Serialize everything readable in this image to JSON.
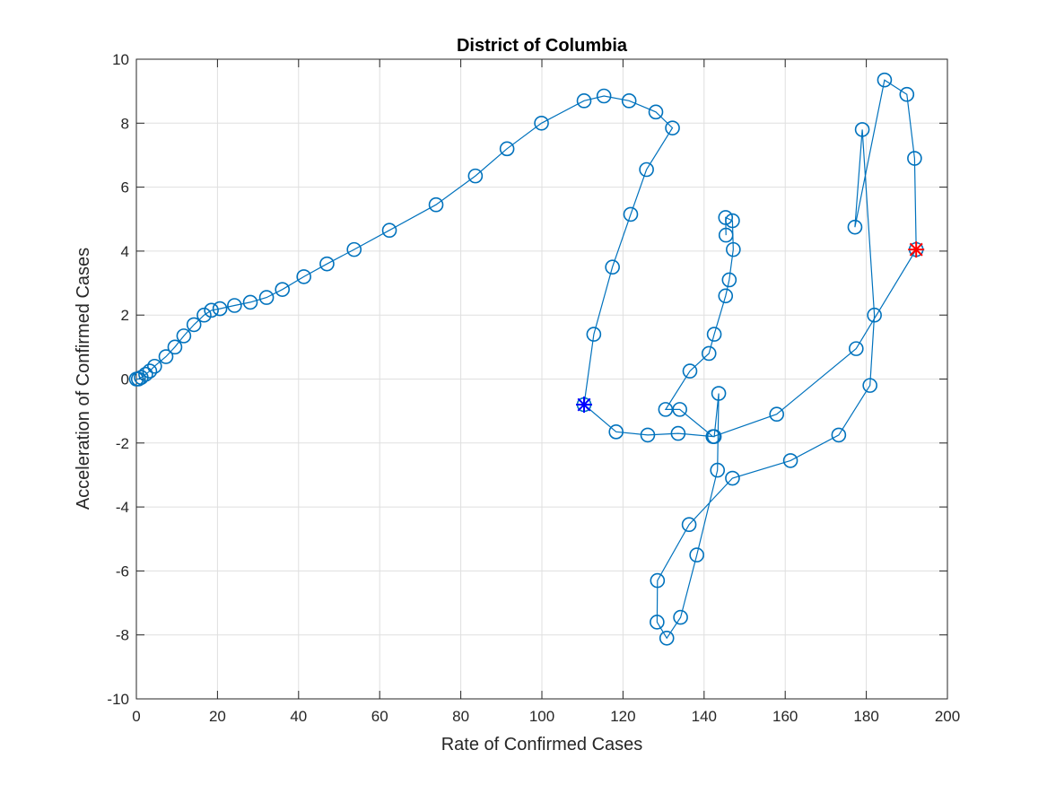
{
  "chart_data": {
    "type": "line",
    "title": "District of Columbia",
    "xlabel": "Rate of Confirmed Cases",
    "ylabel": "Acceleration of Confirmed Cases",
    "xlim": [
      0,
      200
    ],
    "ylim": [
      -10,
      10
    ],
    "xticks": [
      0,
      20,
      40,
      60,
      80,
      100,
      120,
      140,
      160,
      180,
      200
    ],
    "yticks": [
      -10,
      -8,
      -6,
      -4,
      -2,
      0,
      2,
      4,
      6,
      8,
      10
    ],
    "grid": true,
    "colors": {
      "series": "#0072BD",
      "start_marker": "#0000FF",
      "end_marker": "#FF0000"
    },
    "series": [
      {
        "marker": "circle",
        "x": [
          0,
          0.5,
          1.2,
          2.3,
          3.3,
          4.5,
          7.3,
          9.5,
          11.7,
          14.2,
          16.7,
          18.5,
          20.6,
          24.2,
          28.1,
          32.1,
          36.0,
          41.3,
          47.0,
          53.7,
          62.4,
          73.9,
          83.6,
          91.4,
          99.9,
          110.4,
          115.3,
          121.5,
          128.1,
          132.2,
          125.8,
          121.9,
          117.4,
          112.8,
          110.4,
          118.3,
          126.1,
          133.6,
          142.5,
          143.6,
          143.3,
          138.2,
          134.2,
          130.8,
          128.4,
          128.5,
          136.3,
          147.0,
          161.3,
          173.2,
          180.9,
          182.0,
          179.0,
          177.2,
          184.5,
          190.0,
          191.9,
          192.3,
          177.5,
          157.9,
          142.2,
          134.0,
          130.5,
          136.5,
          141.2,
          142.5,
          145.3,
          146.2,
          147.2,
          147.0,
          145.3,
          145.4
        ],
        "y": [
          0,
          0,
          0.05,
          0.15,
          0.25,
          0.4,
          0.7,
          1.0,
          1.35,
          1.7,
          2.0,
          2.15,
          2.2,
          2.3,
          2.4,
          2.55,
          2.8,
          3.2,
          3.6,
          4.05,
          4.65,
          5.45,
          6.35,
          7.2,
          8.0,
          8.7,
          8.85,
          8.7,
          8.35,
          7.85,
          6.55,
          5.15,
          3.5,
          1.4,
          -0.8,
          -1.65,
          -1.75,
          -1.7,
          -1.8,
          -0.45,
          -2.85,
          -5.5,
          -7.45,
          -8.1,
          -7.6,
          -6.3,
          -4.55,
          -3.1,
          -2.55,
          -1.75,
          -0.2,
          2.0,
          7.8,
          4.75,
          9.35,
          8.9,
          6.9,
          4.05,
          0.95,
          -1.1,
          -1.8,
          -0.95,
          -0.95,
          0.25,
          0.8,
          1.4,
          2.6,
          3.1,
          4.05,
          4.95,
          5.05,
          4.5
        ]
      }
    ],
    "start_point": {
      "x": 110.4,
      "y": -0.8
    },
    "end_point": {
      "x": 192.3,
      "y": 4.05
    }
  }
}
